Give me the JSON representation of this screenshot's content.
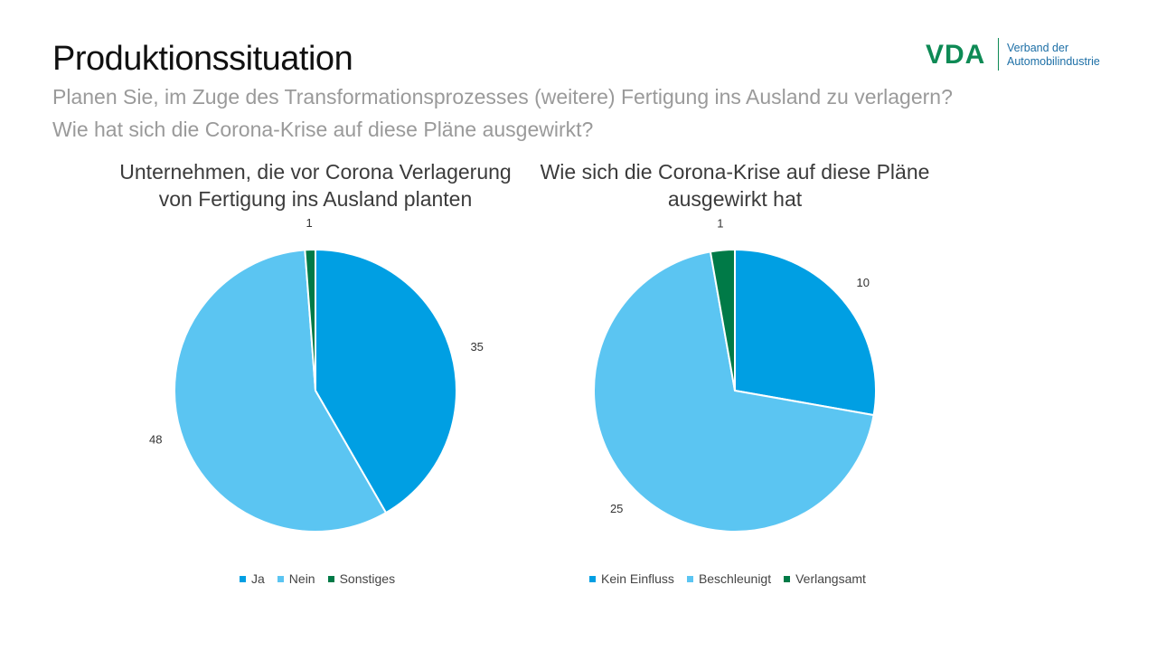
{
  "header": {
    "title": "Produktionssituation",
    "subtitle_line1": "Planen Sie, im Zuge des Transformationsprozesses (weitere) Fertigung ins Ausland zu verlagern?",
    "subtitle_line2": "Wie hat sich die Corona-Krise auf diese Pläne ausgewirkt?"
  },
  "logo": {
    "mark": "VDA",
    "text_line1": "Verband der",
    "text_line2": "Automobilindustrie",
    "color": "#0e8a55",
    "text_color": "#1d6fa6"
  },
  "chart_data": [
    {
      "type": "pie",
      "title_line1": "Unternehmen, die vor Corona Verlagerung",
      "title_line2": "von Fertigung ins Ausland planten",
      "categories": [
        "Ja",
        "Nein",
        "Sonstiges"
      ],
      "values": [
        35,
        48,
        1
      ],
      "colors": [
        "#009fe3",
        "#5bc5f2",
        "#007a47"
      ],
      "legend": "bottom"
    },
    {
      "type": "pie",
      "title_line1": "Wie sich die Corona-Krise auf diese Pläne",
      "title_line2": "ausgewirkt hat",
      "categories": [
        "Kein Einfluss",
        "Beschleunigt",
        "Verlangsamt"
      ],
      "values": [
        10,
        25,
        1
      ],
      "colors": [
        "#009fe3",
        "#5bc5f2",
        "#007a47"
      ],
      "legend": "bottom"
    }
  ]
}
